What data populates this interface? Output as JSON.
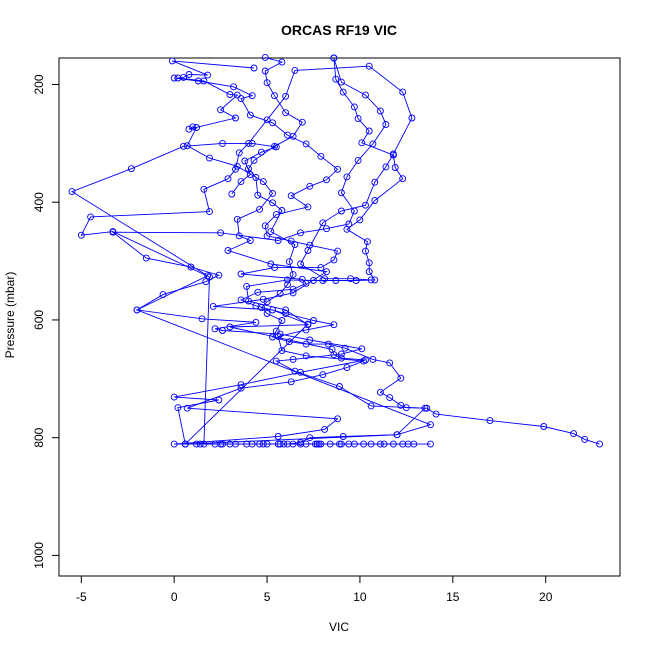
{
  "chart_data": {
    "type": "line",
    "title": "ORCAS RF19 VIC",
    "xlabel": "VIC",
    "ylabel": "Pressure (mbar)",
    "xlim": [
      -6.2,
      24
    ],
    "ylim": [
      1035,
      155
    ],
    "y_reversed": true,
    "grid": false,
    "legend": "none",
    "marker": "open-circle",
    "line_color": "#0000FF",
    "x_ticks": [
      -5,
      0,
      5,
      10,
      15,
      20
    ],
    "x_tick_labels": [
      "-5",
      "0",
      "5",
      "10",
      "15",
      "20"
    ],
    "y_ticks": [
      200,
      400,
      600,
      800,
      1000
    ],
    "y_tick_labels": [
      "200",
      "400",
      "600",
      "800",
      "1000"
    ],
    "series": [
      {
        "points": [
          [
            22.9,
            811
          ],
          [
            22.1,
            803
          ],
          [
            21.5,
            793
          ],
          [
            19.9,
            781
          ],
          [
            17.0,
            771
          ],
          [
            14.1,
            760
          ],
          [
            13.6,
            750
          ],
          [
            12.5,
            749
          ],
          [
            12.2,
            745
          ],
          [
            11.6,
            732
          ],
          [
            11.1,
            723
          ],
          [
            12.2,
            699
          ],
          [
            11.6,
            673
          ],
          [
            10.7,
            667
          ],
          [
            9.2,
            648
          ],
          [
            8.3,
            641
          ],
          [
            7.1,
            641
          ],
          [
            6.2,
            637
          ],
          [
            5.3,
            629
          ],
          [
            5.5,
            619
          ],
          [
            5.8,
            601
          ],
          [
            5.0,
            589
          ],
          [
            4.7,
            579
          ],
          [
            5.0,
            569
          ],
          [
            5.7,
            555
          ],
          [
            6.1,
            540
          ],
          [
            6.4,
            523
          ],
          [
            6.2,
            501
          ],
          [
            6.5,
            472
          ],
          [
            5.2,
            450
          ],
          [
            5.8,
            414
          ],
          [
            5.3,
            401
          ],
          [
            4.5,
            388
          ],
          [
            4.4,
            358
          ],
          [
            4.0,
            343
          ],
          [
            4.3,
            329
          ],
          [
            5.4,
            305
          ],
          [
            6.4,
            288
          ],
          [
            6.9,
            264
          ],
          [
            6.0,
            248
          ],
          [
            5.4,
            219
          ],
          [
            5.0,
            197
          ],
          [
            4.9,
            177
          ],
          [
            5.8,
            162
          ],
          [
            4.9,
            154
          ]
        ]
      },
      {
        "points": [
          [
            11.8,
            811
          ],
          [
            9.7,
            811
          ],
          [
            8.4,
            811
          ],
          [
            7.1,
            811
          ],
          [
            5.6,
            811
          ],
          [
            3.9,
            811
          ],
          [
            2.2,
            811
          ],
          [
            0.6,
            811
          ],
          [
            0.2,
            749
          ],
          [
            2.4,
            736
          ],
          [
            0.0,
            731
          ],
          [
            3.6,
            710
          ],
          [
            6.8,
            689
          ],
          [
            10.3,
            668
          ],
          [
            9.0,
            665
          ],
          [
            8.6,
            659
          ],
          [
            8.5,
            650
          ],
          [
            3.0,
            612
          ],
          [
            7.2,
            608
          ],
          [
            6.0,
            583
          ],
          [
            4.0,
            568
          ],
          [
            3.9,
            543
          ],
          [
            6.1,
            532
          ],
          [
            7.5,
            533
          ],
          [
            8.0,
            533
          ],
          [
            8.7,
            533
          ],
          [
            9.8,
            533
          ],
          [
            10.8,
            532
          ],
          [
            10.5,
            518
          ],
          [
            10.5,
            503
          ],
          [
            10.3,
            483
          ],
          [
            10.4,
            467
          ],
          [
            9.3,
            446
          ],
          [
            10.0,
            430
          ],
          [
            10.8,
            397
          ],
          [
            12.3,
            360
          ],
          [
            11.9,
            341
          ],
          [
            11.8,
            320
          ],
          [
            10.1,
            299
          ],
          [
            10.5,
            279
          ],
          [
            9.9,
            258
          ],
          [
            9.7,
            238
          ],
          [
            9.1,
            213
          ],
          [
            8.7,
            191
          ],
          [
            8.6,
            155
          ]
        ]
      },
      {
        "points": [
          [
            8.9,
            811
          ],
          [
            7.8,
            811
          ],
          [
            6.4,
            811
          ],
          [
            5.0,
            811
          ],
          [
            3.0,
            811
          ],
          [
            1.2,
            811
          ],
          [
            0.0,
            811
          ],
          [
            5.6,
            798
          ],
          [
            8.1,
            786
          ],
          [
            8.8,
            768
          ],
          [
            0.7,
            750
          ],
          [
            3.6,
            716
          ],
          [
            6.3,
            705
          ],
          [
            8.0,
            693
          ],
          [
            9.3,
            681
          ],
          [
            10.2,
            670
          ],
          [
            7.1,
            661
          ],
          [
            5.8,
            652
          ],
          [
            5.6,
            628
          ],
          [
            7.1,
            617
          ],
          [
            8.6,
            608
          ],
          [
            7.5,
            601
          ],
          [
            6.0,
            589
          ],
          [
            4.4,
            576
          ],
          [
            3.6,
            566
          ],
          [
            4.5,
            553
          ],
          [
            6.4,
            548
          ],
          [
            7.1,
            538
          ],
          [
            6.9,
            531
          ],
          [
            3.6,
            522
          ],
          [
            5.4,
            511
          ],
          [
            7.9,
            511
          ],
          [
            8.6,
            498
          ],
          [
            8.8,
            483
          ],
          [
            7.3,
            473
          ],
          [
            6.3,
            466
          ],
          [
            5.0,
            457
          ],
          [
            4.9,
            440
          ],
          [
            5.5,
            421
          ],
          [
            7.2,
            408
          ],
          [
            6.3,
            389
          ],
          [
            7.3,
            373
          ],
          [
            8.2,
            362
          ],
          [
            8.8,
            344
          ],
          [
            7.9,
            322
          ],
          [
            7.1,
            301
          ],
          [
            6.1,
            286
          ],
          [
            5.3,
            265
          ],
          [
            4.1,
            252
          ],
          [
            3.6,
            224
          ],
          [
            4.2,
            219
          ],
          [
            3.2,
            204
          ],
          [
            1.3,
            194
          ],
          [
            0.0,
            189
          ]
        ]
      },
      {
        "points": [
          [
            13.8,
            811
          ],
          [
            12.6,
            811
          ],
          [
            10.6,
            811
          ],
          [
            9.0,
            811
          ],
          [
            7.6,
            811
          ],
          [
            6.1,
            811
          ],
          [
            6.8,
            808
          ],
          [
            7.3,
            800
          ],
          [
            9.1,
            798
          ],
          [
            12.0,
            795
          ],
          [
            13.5,
            750
          ],
          [
            10.6,
            746
          ],
          [
            8.9,
            713
          ],
          [
            6.5,
            687
          ],
          [
            5.5,
            670
          ],
          [
            6.4,
            667
          ],
          [
            9.0,
            658
          ],
          [
            10.1,
            649
          ],
          [
            7.3,
            634
          ],
          [
            5.7,
            624
          ],
          [
            2.6,
            618
          ],
          [
            2.2,
            615
          ],
          [
            4.4,
            604
          ],
          [
            1.5,
            598
          ],
          [
            -2.0,
            583
          ],
          [
            -0.6,
            557
          ],
          [
            1.7,
            535
          ],
          [
            2.4,
            524
          ],
          [
            0.9,
            510
          ],
          [
            -1.5,
            495
          ],
          [
            -3.3,
            451
          ],
          [
            2.5,
            452
          ],
          [
            5.6,
            465
          ],
          [
            6.8,
            452
          ],
          [
            8.2,
            445
          ],
          [
            9.4,
            437
          ],
          [
            9.7,
            415
          ],
          [
            9.0,
            384
          ],
          [
            9.3,
            357
          ],
          [
            9.9,
            329
          ],
          [
            10.7,
            301
          ],
          [
            11.4,
            268
          ],
          [
            11.1,
            245
          ],
          [
            10.3,
            218
          ],
          [
            9.0,
            196
          ],
          [
            8.6,
            155
          ]
        ]
      },
      {
        "points": [
          [
            7.7,
            811
          ],
          [
            6.8,
            811
          ],
          [
            5.7,
            811
          ],
          [
            4.2,
            811
          ],
          [
            2.5,
            811
          ],
          [
            0.6,
            811
          ],
          [
            7.2,
            607
          ],
          [
            5.3,
            583
          ],
          [
            2.1,
            577
          ],
          [
            4.8,
            565
          ],
          [
            6.4,
            554
          ],
          [
            8.2,
            518
          ],
          [
            5.2,
            505
          ],
          [
            2.9,
            482
          ],
          [
            4.1,
            465
          ],
          [
            3.5,
            457
          ],
          [
            3.4,
            429
          ],
          [
            4.6,
            412
          ],
          [
            5.3,
            385
          ],
          [
            4.8,
            365
          ],
          [
            3.4,
            339
          ],
          [
            1.9,
            325
          ],
          [
            0.7,
            304
          ],
          [
            1.2,
            273
          ],
          [
            1.0,
            272
          ],
          [
            0.8,
            276
          ],
          [
            3.3,
            257
          ],
          [
            2.5,
            243
          ],
          [
            3.4,
            218
          ],
          [
            3.0,
            217
          ],
          [
            1.6,
            194
          ],
          [
            0.2,
            189
          ],
          [
            0.5,
            188
          ],
          [
            0.8,
            183
          ],
          [
            1.8,
            184
          ],
          [
            -0.1,
            160
          ],
          [
            4.3,
            172
          ]
        ]
      },
      {
        "points": [
          [
            11.3,
            811
          ],
          [
            10.2,
            811
          ],
          [
            7.9,
            811
          ],
          [
            4.8,
            811
          ],
          [
            2.6,
            811
          ],
          [
            1.6,
            811
          ],
          [
            1.9,
            527
          ],
          [
            -3.3,
            450
          ],
          [
            -5.0,
            456
          ],
          [
            -4.5,
            425
          ],
          [
            1.9,
            416
          ],
          [
            1.6,
            378
          ],
          [
            2.9,
            360
          ],
          [
            3.3,
            344
          ],
          [
            3.5,
            316
          ],
          [
            4.0,
            300
          ],
          [
            5.0,
            260
          ],
          [
            6.0,
            220
          ],
          [
            6.5,
            176
          ],
          [
            10.5,
            169
          ],
          [
            12.3,
            213
          ],
          [
            12.8,
            257
          ],
          [
            11.8,
            318
          ],
          [
            11.4,
            340
          ],
          [
            10.8,
            366
          ],
          [
            10.3,
            405
          ],
          [
            9.0,
            415
          ],
          [
            8.0,
            435
          ],
          [
            7.2,
            482
          ],
          [
            6.8,
            505
          ],
          [
            8.1,
            530
          ],
          [
            9.5,
            530
          ],
          [
            10.6,
            532
          ]
        ]
      },
      {
        "points": [
          [
            12.9,
            811
          ],
          [
            12.3,
            811
          ],
          [
            11.1,
            811
          ],
          [
            9.4,
            811
          ],
          [
            7.7,
            811
          ],
          [
            5.9,
            811
          ],
          [
            4.6,
            811
          ],
          [
            3.3,
            811
          ],
          [
            1.4,
            811
          ],
          [
            0.6,
            811
          ],
          [
            12.0,
            795
          ],
          [
            13.8,
            778
          ],
          [
            -2.0,
            583
          ],
          [
            1.8,
            525
          ],
          [
            -5.5,
            382
          ],
          [
            -2.3,
            343
          ],
          [
            0.5,
            305
          ],
          [
            2.6,
            300
          ],
          [
            4.2,
            300
          ],
          [
            5.5,
            306
          ],
          [
            4.7,
            315
          ],
          [
            3.8,
            330
          ],
          [
            4.1,
            353
          ],
          [
            3.6,
            365
          ],
          [
            3.1,
            386
          ]
        ]
      }
    ]
  }
}
